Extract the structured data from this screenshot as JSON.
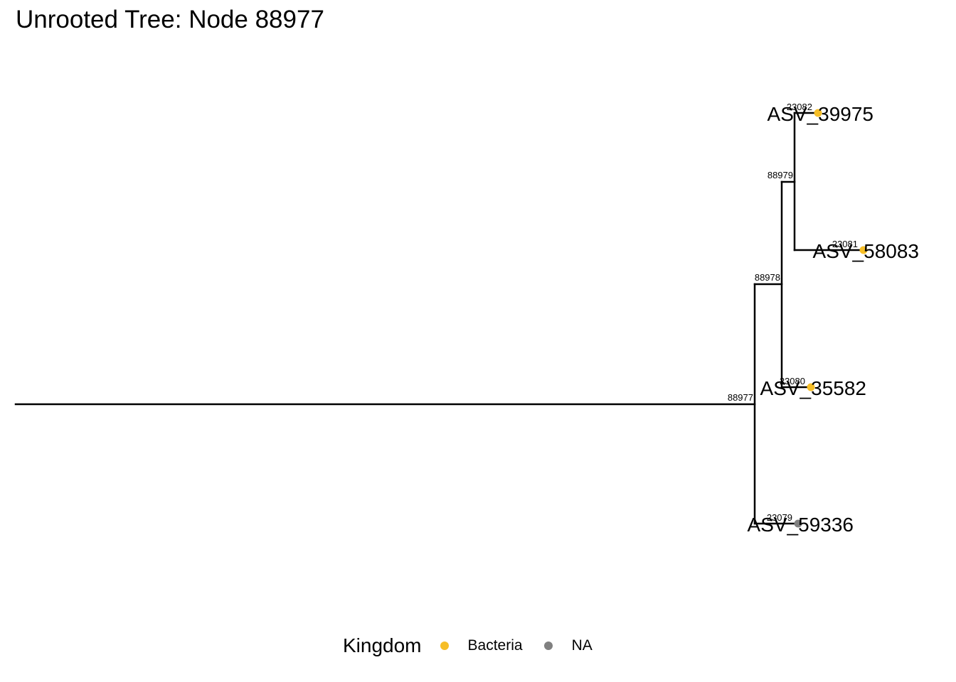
{
  "title": "Unrooted Tree: Node 88977",
  "colors": {
    "branch": "#000000",
    "Bacteria": "#F6BE27",
    "NA": "#808080"
  },
  "tree": {
    "internal_nodes": [
      {
        "id": "88977",
        "label": "88977"
      },
      {
        "id": "88978",
        "label": "88978",
        "parent": "88977"
      },
      {
        "id": "88979",
        "label": "88979",
        "parent": "88978"
      }
    ],
    "tips": [
      {
        "id": "23082",
        "node_label": "23082",
        "name": "ASV_39975",
        "kingdom": "Bacteria",
        "parent": "88979"
      },
      {
        "id": "23081",
        "node_label": "23081",
        "name": "ASV_58083",
        "kingdom": "Bacteria",
        "parent": "88979"
      },
      {
        "id": "23080",
        "node_label": "23080",
        "name": "ASV_35582",
        "kingdom": "Bacteria",
        "parent": "88978"
      },
      {
        "id": "23079",
        "node_label": "23079",
        "name": "ASV_59336",
        "kingdom": "NA",
        "parent": "88977"
      }
    ]
  },
  "legend": {
    "title": "Kingdom",
    "items": [
      {
        "label": "Bacteria",
        "color": "#F6BE27"
      },
      {
        "label": "NA",
        "color": "#808080"
      }
    ]
  }
}
